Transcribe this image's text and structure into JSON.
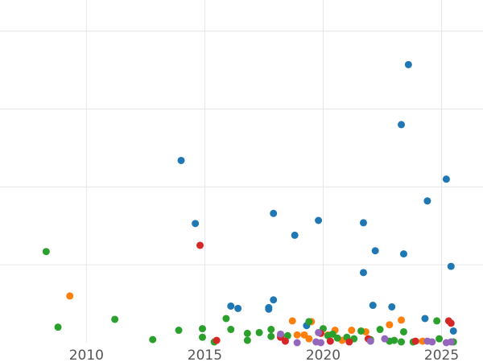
{
  "chart_data": {
    "type": "scatter",
    "title": "",
    "xlabel": "",
    "ylabel": "",
    "xlim": [
      2006.35,
      2026.75
    ],
    "ylim": [
      0,
      4.4
    ],
    "x_ticks": [
      {
        "value": 2010,
        "label": "2010"
      },
      {
        "value": 2015,
        "label": "2015"
      },
      {
        "value": 2020,
        "label": "2020"
      },
      {
        "value": 2025,
        "label": "2025"
      }
    ],
    "y_grid": [
      1,
      2,
      3,
      4
    ],
    "grid": true,
    "legend": "none",
    "series": [
      {
        "color": "#1f77b4",
        "points": [
          {
            "x": 2014.0,
            "y": 2.34
          },
          {
            "x": 2014.6,
            "y": 1.53
          },
          {
            "x": 2016.1,
            "y": 0.47
          },
          {
            "x": 2016.4,
            "y": 0.44
          },
          {
            "x": 2017.7,
            "y": 0.43
          },
          {
            "x": 2017.7,
            "y": 0.45
          },
          {
            "x": 2017.9,
            "y": 0.55
          },
          {
            "x": 2017.9,
            "y": 1.66
          },
          {
            "x": 2018.8,
            "y": 1.38
          },
          {
            "x": 2019.3,
            "y": 0.22
          },
          {
            "x": 2019.8,
            "y": 1.57
          },
          {
            "x": 2021.7,
            "y": 1.54
          },
          {
            "x": 2021.7,
            "y": 0.9
          },
          {
            "x": 2022.1,
            "y": 0.48
          },
          {
            "x": 2022.2,
            "y": 1.18
          },
          {
            "x": 2022.9,
            "y": 0.46
          },
          {
            "x": 2023.3,
            "y": 2.8
          },
          {
            "x": 2023.4,
            "y": 1.14
          },
          {
            "x": 2023.6,
            "y": 3.57
          },
          {
            "x": 2024.3,
            "y": 0.31
          },
          {
            "x": 2024.4,
            "y": 1.82
          },
          {
            "x": 2025.2,
            "y": 2.1
          },
          {
            "x": 2025.4,
            "y": 0.98
          },
          {
            "x": 2025.5,
            "y": 0.15
          }
        ]
      },
      {
        "color": "#ff7f0e",
        "points": [
          {
            "x": 2009.3,
            "y": 0.6
          },
          {
            "x": 2018.7,
            "y": 0.28
          },
          {
            "x": 2018.9,
            "y": 0.1
          },
          {
            "x": 2019.2,
            "y": 0.1
          },
          {
            "x": 2019.4,
            "y": 0.05
          },
          {
            "x": 2019.5,
            "y": 0.27
          },
          {
            "x": 2020.2,
            "y": 0.1
          },
          {
            "x": 2020.5,
            "y": 0.16
          },
          {
            "x": 2020.8,
            "y": 0.03
          },
          {
            "x": 2021.2,
            "y": 0.16
          },
          {
            "x": 2021.8,
            "y": 0.14
          },
          {
            "x": 2022.8,
            "y": 0.23
          },
          {
            "x": 2023.3,
            "y": 0.29
          },
          {
            "x": 2024.2,
            "y": 0.02
          }
        ]
      },
      {
        "color": "#2ca02c",
        "points": [
          {
            "x": 2008.3,
            "y": 1.17
          },
          {
            "x": 2008.8,
            "y": 0.2
          },
          {
            "x": 2011.2,
            "y": 0.3
          },
          {
            "x": 2012.8,
            "y": 0.04
          },
          {
            "x": 2013.9,
            "y": 0.16
          },
          {
            "x": 2014.9,
            "y": 0.18
          },
          {
            "x": 2014.9,
            "y": 0.07
          },
          {
            "x": 2015.4,
            "y": 0.01
          },
          {
            "x": 2015.9,
            "y": 0.31
          },
          {
            "x": 2016.1,
            "y": 0.17
          },
          {
            "x": 2016.8,
            "y": 0.12
          },
          {
            "x": 2016.8,
            "y": 0.03
          },
          {
            "x": 2017.3,
            "y": 0.13
          },
          {
            "x": 2017.8,
            "y": 0.17
          },
          {
            "x": 2017.8,
            "y": 0.08
          },
          {
            "x": 2018.2,
            "y": 0.1
          },
          {
            "x": 2018.5,
            "y": 0.09
          },
          {
            "x": 2019.4,
            "y": 0.27
          },
          {
            "x": 2020.0,
            "y": 0.18
          },
          {
            "x": 2020.2,
            "y": 0.09
          },
          {
            "x": 2020.4,
            "y": 0.11
          },
          {
            "x": 2020.6,
            "y": 0.06
          },
          {
            "x": 2021.0,
            "y": 0.07
          },
          {
            "x": 2021.3,
            "y": 0.05
          },
          {
            "x": 2021.6,
            "y": 0.15
          },
          {
            "x": 2022.0,
            "y": 0.04
          },
          {
            "x": 2022.4,
            "y": 0.17
          },
          {
            "x": 2022.8,
            "y": 0.02
          },
          {
            "x": 2023.0,
            "y": 0.03
          },
          {
            "x": 2023.3,
            "y": 0.01
          },
          {
            "x": 2023.4,
            "y": 0.14
          },
          {
            "x": 2023.8,
            "y": 0.01
          },
          {
            "x": 2024.8,
            "y": 0.28
          },
          {
            "x": 2024.9,
            "y": 0.05
          },
          {
            "x": 2025.5,
            "y": 0.01
          }
        ]
      },
      {
        "color": "#d62728",
        "points": [
          {
            "x": 2014.8,
            "y": 1.25
          },
          {
            "x": 2015.5,
            "y": 0.03
          },
          {
            "x": 2018.2,
            "y": 0.07
          },
          {
            "x": 2018.4,
            "y": 0.02
          },
          {
            "x": 2019.9,
            "y": 0.12
          },
          {
            "x": 2020.3,
            "y": 0.02
          },
          {
            "x": 2021.1,
            "y": 0.01
          },
          {
            "x": 2021.9,
            "y": 0.05
          },
          {
            "x": 2023.9,
            "y": 0.02
          },
          {
            "x": 2025.3,
            "y": 0.28
          },
          {
            "x": 2025.4,
            "y": 0.25
          }
        ]
      },
      {
        "color": "#9467bd",
        "points": [
          {
            "x": 2018.2,
            "y": 0.11
          },
          {
            "x": 2018.9,
            "y": 0.0
          },
          {
            "x": 2019.7,
            "y": 0.01
          },
          {
            "x": 2019.8,
            "y": 0.13
          },
          {
            "x": 2019.9,
            "y": 0.0
          },
          {
            "x": 2022.0,
            "y": 0.02
          },
          {
            "x": 2022.6,
            "y": 0.05
          },
          {
            "x": 2024.4,
            "y": 0.02
          },
          {
            "x": 2024.6,
            "y": 0.01
          },
          {
            "x": 2025.2,
            "y": 0.0
          },
          {
            "x": 2025.4,
            "y": 0.01
          }
        ]
      }
    ]
  }
}
